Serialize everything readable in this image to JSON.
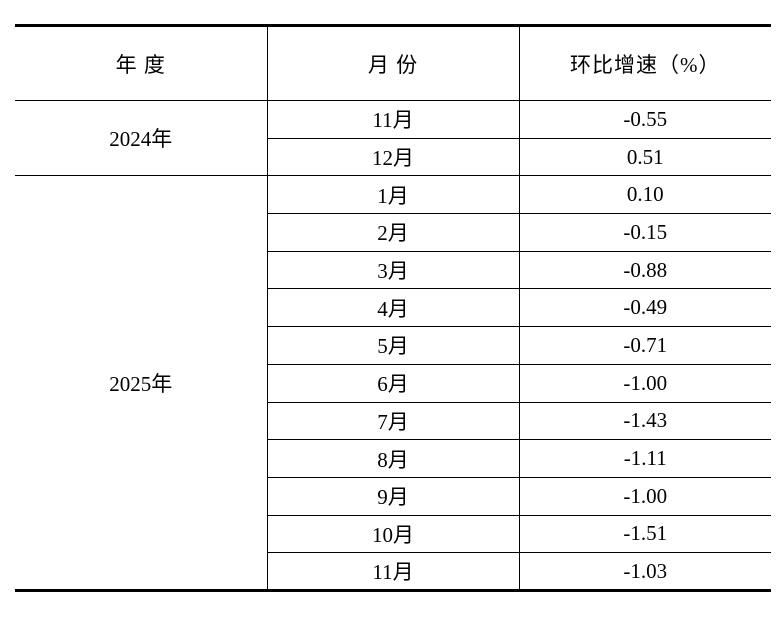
{
  "table": {
    "header": [
      "年 度",
      "月 份",
      "环比增速（%）"
    ],
    "groups": [
      {
        "year": "2024年",
        "rows": [
          [
            "11月",
            "-0.55"
          ],
          [
            "12月",
            "0.51"
          ]
        ]
      },
      {
        "year": "2025年",
        "rows": [
          [
            "1月",
            "0.10"
          ],
          [
            "2月",
            "-0.15"
          ],
          [
            "3月",
            "-0.88"
          ],
          [
            "4月",
            "-0.49"
          ],
          [
            "5月",
            "-0.71"
          ],
          [
            "6月",
            "-1.00"
          ],
          [
            "7月",
            "-1.43"
          ],
          [
            "8月",
            "-1.11"
          ],
          [
            "9月",
            "-1.00"
          ],
          [
            "10月",
            "-1.51"
          ],
          [
            "11月",
            "-1.03"
          ]
        ]
      }
    ]
  }
}
